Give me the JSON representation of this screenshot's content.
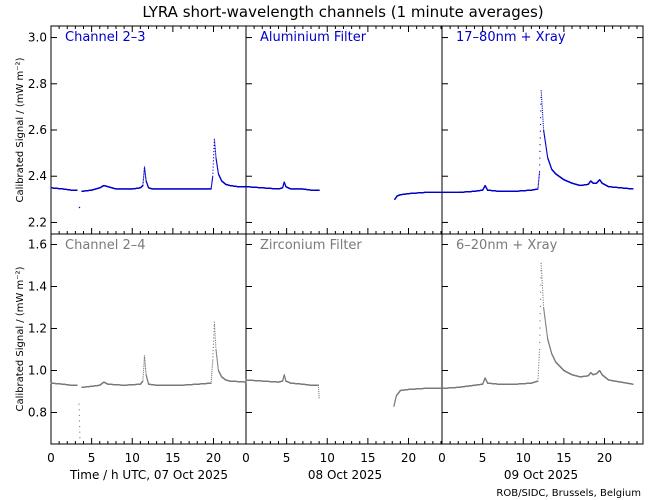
{
  "chart_data": {
    "type": "scatter",
    "title": "LYRA short-wavelength channels (1 minute averages)",
    "ylabel": "Calibrated Signal / (mW m⁻²)",
    "xlabel": "Time / h UTC, 07 Oct 2025",
    "day_labels": [
      "Time / h UTC, 07 Oct 2025",
      "08 Oct 2025",
      "09 Oct 2025"
    ],
    "x_ticks": [
      "0",
      "5",
      "10",
      "15",
      "20"
    ],
    "xlim": [
      0,
      24
    ],
    "credit": "ROB/SIDC, Brussels, Belgium",
    "colors": {
      "top": "#0000c8",
      "bottom": "#7a7a7a"
    },
    "rows": [
      {
        "ylim": [
          2.15,
          3.05
        ],
        "yticks": [
          "2.2",
          "2.4",
          "2.6",
          "2.8",
          "3.0"
        ],
        "ytick_values": [
          2.2,
          2.4,
          2.6,
          2.8,
          3.0
        ],
        "color": "#0000c8",
        "panels": [
          {
            "label": "Channel 2–3",
            "day": 0,
            "series": [
              [
                [
                  0,
                  2.35
                ],
                [
                  1.5,
                  2.345
                ],
                [
                  2.5,
                  2.34
                ],
                [
                  3.2,
                  2.34
                ]
              ],
              [
                [
                  3.5,
                  2.265
                ]
              ],
              [
                [
                  3.8,
                  2.335
                ],
                [
                  5,
                  2.34
                ],
                [
                  6,
                  2.35
                ],
                [
                  6.5,
                  2.36
                ],
                [
                  7,
                  2.355
                ],
                [
                  8,
                  2.345
                ],
                [
                  10,
                  2.345
                ],
                [
                  11,
                  2.35
                ],
                [
                  11.3,
                  2.36
                ],
                [
                  11.5,
                  2.44
                ],
                [
                  11.7,
                  2.38
                ],
                [
                  12,
                  2.35
                ],
                [
                  12.5,
                  2.345
                ],
                [
                  15,
                  2.345
                ],
                [
                  18,
                  2.345
                ],
                [
                  19.7,
                  2.345
                ],
                [
                  19.9,
                  2.4
                ],
                [
                  20.1,
                  2.56
                ],
                [
                  20.3,
                  2.48
                ],
                [
                  20.6,
                  2.41
                ],
                [
                  21,
                  2.38
                ],
                [
                  21.5,
                  2.365
                ],
                [
                  22,
                  2.36
                ],
                [
                  23,
                  2.355
                ],
                [
                  24,
                  2.355
                ]
              ]
            ]
          },
          {
            "label": "Aluminium Filter",
            "day": 1,
            "series": [
              [
                [
                  0,
                  2.355
                ],
                [
                  2,
                  2.35
                ],
                [
                  4,
                  2.345
                ],
                [
                  4.5,
                  2.35
                ],
                [
                  4.7,
                  2.375
                ],
                [
                  4.9,
                  2.355
                ],
                [
                  5.5,
                  2.345
                ],
                [
                  7,
                  2.345
                ],
                [
                  8,
                  2.34
                ],
                [
                  9,
                  2.34
                ]
              ],
              [
                [
                  18.3,
                  2.3
                ],
                [
                  18.6,
                  2.315
                ],
                [
                  19,
                  2.32
                ],
                [
                  20,
                  2.325
                ],
                [
                  22,
                  2.33
                ],
                [
                  24,
                  2.33
                ]
              ]
            ]
          },
          {
            "label": "17–80nm + Xray",
            "day": 2,
            "series": [
              [
                [
                  0,
                  2.33
                ],
                [
                  2,
                  2.33
                ],
                [
                  4,
                  2.335
                ],
                [
                  5,
                  2.34
                ],
                [
                  5.3,
                  2.36
                ],
                [
                  5.6,
                  2.34
                ],
                [
                  7,
                  2.335
                ],
                [
                  9,
                  2.335
                ],
                [
                  11,
                  2.34
                ],
                [
                  11.8,
                  2.345
                ],
                [
                  12.0,
                  2.42
                ],
                [
                  12.2,
                  2.77
                ],
                [
                  12.5,
                  2.6
                ],
                [
                  13,
                  2.48
                ],
                [
                  13.5,
                  2.43
                ],
                [
                  14,
                  2.41
                ],
                [
                  15,
                  2.385
                ],
                [
                  16,
                  2.37
                ],
                [
                  17,
                  2.36
                ],
                [
                  18,
                  2.365
                ],
                [
                  18.3,
                  2.38
                ],
                [
                  18.6,
                  2.37
                ],
                [
                  19,
                  2.37
                ],
                [
                  19.4,
                  2.385
                ],
                [
                  19.7,
                  2.37
                ],
                [
                  20.5,
                  2.355
                ],
                [
                  22,
                  2.35
                ],
                [
                  23.5,
                  2.345
                ]
              ]
            ]
          }
        ]
      },
      {
        "ylim": [
          0.65,
          1.65
        ],
        "yticks": [
          "0.8",
          "1.0",
          "1.2",
          "1.4",
          "1.6"
        ],
        "ytick_values": [
          0.8,
          1.0,
          1.2,
          1.4,
          1.6
        ],
        "color": "#7a7a7a",
        "panels": [
          {
            "label": "Channel 2–4",
            "day": 0,
            "series": [
              [
                [
                  0,
                  0.94
                ],
                [
                  1.5,
                  0.935
                ],
                [
                  2.5,
                  0.93
                ],
                [
                  3.2,
                  0.93
                ]
              ],
              [
                [
                  3.45,
                  0.84
                ],
                [
                  3.55,
                  0.68
                ]
              ],
              [
                [
                  3.8,
                  0.92
                ],
                [
                  5,
                  0.925
                ],
                [
                  6,
                  0.93
                ],
                [
                  6.5,
                  0.945
                ],
                [
                  7,
                  0.935
                ],
                [
                  9,
                  0.93
                ],
                [
                  11,
                  0.935
                ],
                [
                  11.3,
                  0.95
                ],
                [
                  11.5,
                  1.07
                ],
                [
                  11.7,
                  0.98
                ],
                [
                  12,
                  0.935
                ],
                [
                  13,
                  0.93
                ],
                [
                  16,
                  0.93
                ],
                [
                  18,
                  0.935
                ],
                [
                  19.7,
                  0.94
                ],
                [
                  19.9,
                  1.05
                ],
                [
                  20.1,
                  1.23
                ],
                [
                  20.3,
                  1.1
                ],
                [
                  20.6,
                  1.0
                ],
                [
                  21,
                  0.97
                ],
                [
                  21.5,
                  0.955
                ],
                [
                  22,
                  0.95
                ],
                [
                  24,
                  0.945
                ]
              ]
            ]
          },
          {
            "label": "Zirconium Filter",
            "day": 1,
            "series": [
              [
                [
                  0,
                  0.955
                ],
                [
                  2,
                  0.95
                ],
                [
                  4,
                  0.945
                ],
                [
                  4.5,
                  0.95
                ],
                [
                  4.7,
                  0.98
                ],
                [
                  4.9,
                  0.95
                ],
                [
                  5.5,
                  0.94
                ],
                [
                  7,
                  0.935
                ],
                [
                  8,
                  0.93
                ],
                [
                  8.9,
                  0.93
                ],
                [
                  9,
                  0.87
                ]
              ],
              [
                [
                  18.2,
                  0.83
                ],
                [
                  18.5,
                  0.88
                ],
                [
                  19,
                  0.905
                ],
                [
                  20,
                  0.91
                ],
                [
                  22,
                  0.915
                ],
                [
                  24,
                  0.915
                ]
              ]
            ]
          },
          {
            "label": "6–20nm + Xray",
            "day": 2,
            "series": [
              [
                [
                  0,
                  0.915
                ],
                [
                  2,
                  0.92
                ],
                [
                  4,
                  0.93
                ],
                [
                  5,
                  0.935
                ],
                [
                  5.3,
                  0.965
                ],
                [
                  5.6,
                  0.94
                ],
                [
                  7,
                  0.935
                ],
                [
                  9,
                  0.935
                ],
                [
                  11,
                  0.94
                ],
                [
                  11.8,
                  0.95
                ],
                [
                  12.0,
                  1.1
                ],
                [
                  12.2,
                  1.51
                ],
                [
                  12.5,
                  1.3
                ],
                [
                  13,
                  1.15
                ],
                [
                  13.5,
                  1.08
                ],
                [
                  14,
                  1.04
                ],
                [
                  15,
                  1.0
                ],
                [
                  16,
                  0.98
                ],
                [
                  17,
                  0.97
                ],
                [
                  18,
                  0.975
                ],
                [
                  18.3,
                  0.99
                ],
                [
                  18.6,
                  0.98
                ],
                [
                  19,
                  0.985
                ],
                [
                  19.4,
                  1.0
                ],
                [
                  19.7,
                  0.98
                ],
                [
                  20.5,
                  0.955
                ],
                [
                  22,
                  0.945
                ],
                [
                  23.5,
                  0.935
                ]
              ]
            ]
          }
        ]
      }
    ]
  }
}
